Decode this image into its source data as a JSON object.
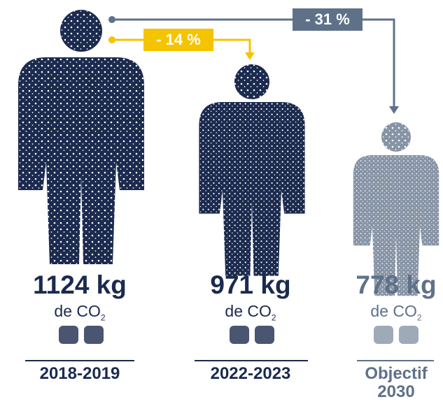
{
  "arrows": [
    {
      "label": "- 14 %"
    },
    {
      "label": "- 31 %"
    }
  ],
  "figures": [
    {
      "amount": "1124 kg",
      "unit": "de CO",
      "subscript": "2",
      "period": "2018-2019"
    },
    {
      "amount": "971 kg",
      "unit": "de CO",
      "subscript": "2",
      "period": "2022-2023"
    },
    {
      "amount": "778 kg",
      "unit": "de CO",
      "subscript": "2",
      "period": "Objectif 2030"
    }
  ]
}
